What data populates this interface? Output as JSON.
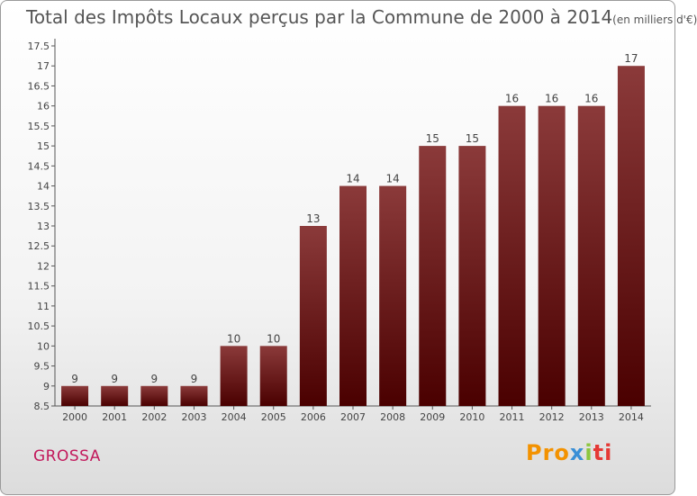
{
  "title": {
    "main": "Total des Impôts Locaux perçus par la Commune de 2000 à 2014",
    "unit": "(en milliers d'€)"
  },
  "commune": "GROSSA",
  "logo": {
    "part1": "Pro",
    "part2": "x",
    "part3": "i",
    "part4": "ti"
  },
  "colors": {
    "bar_top": "#8b3a3a",
    "bar_bottom": "#4a0000",
    "accent": "#c2185b"
  },
  "chart_data": {
    "type": "bar",
    "title": "Total des Impôts Locaux perçus par la Commune de 2000 à 2014 (en milliers d'€)",
    "xlabel": "",
    "ylabel": "",
    "categories": [
      "2000",
      "2001",
      "2002",
      "2003",
      "2004",
      "2005",
      "2006",
      "2007",
      "2008",
      "2009",
      "2010",
      "2011",
      "2012",
      "2013",
      "2014"
    ],
    "values": [
      9,
      9,
      9,
      9,
      10,
      10,
      13,
      14,
      14,
      15,
      15,
      16,
      16,
      16,
      17
    ],
    "ylim": [
      8.5,
      17.5
    ],
    "yticks": [
      "8.5",
      "9",
      "9.5",
      "10",
      "10.5",
      "11",
      "11.5",
      "12",
      "12.5",
      "13",
      "13.5",
      "14",
      "14.5",
      "15",
      "15.5",
      "16",
      "16.5",
      "17",
      "17.5"
    ],
    "grid": false
  }
}
